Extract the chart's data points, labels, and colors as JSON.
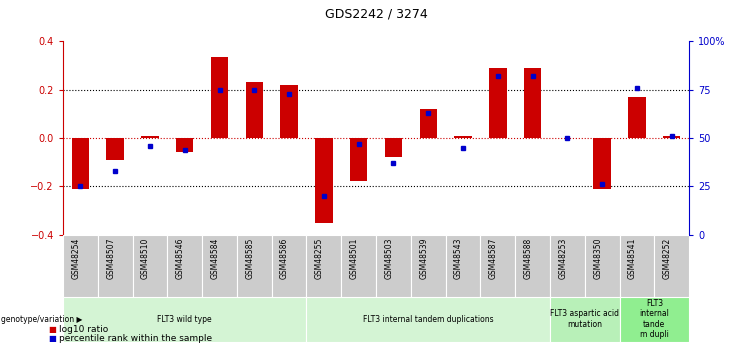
{
  "title": "GDS2242 / 3274",
  "samples": [
    "GSM48254",
    "GSM48507",
    "GSM48510",
    "GSM48546",
    "GSM48584",
    "GSM48585",
    "GSM48586",
    "GSM48255",
    "GSM48501",
    "GSM48503",
    "GSM48539",
    "GSM48543",
    "GSM48587",
    "GSM48588",
    "GSM48253",
    "GSM48350",
    "GSM48541",
    "GSM48252"
  ],
  "log10_ratio": [
    -0.21,
    -0.09,
    0.01,
    -0.06,
    0.335,
    0.23,
    0.22,
    -0.35,
    -0.18,
    -0.08,
    0.12,
    0.01,
    0.29,
    0.29,
    0.0,
    -0.21,
    0.17,
    0.01
  ],
  "percentile_rank": [
    25,
    33,
    46,
    44,
    75,
    75,
    73,
    20,
    47,
    37,
    63,
    45,
    82,
    82,
    50,
    26,
    76,
    51
  ],
  "groups": [
    {
      "label": "FLT3 wild type",
      "start": 0,
      "end": 7,
      "color": "#d4f4d4"
    },
    {
      "label": "FLT3 internal tandem duplications",
      "start": 7,
      "end": 14,
      "color": "#d4f4d4"
    },
    {
      "label": "FLT3 aspartic acid\nmutation",
      "start": 14,
      "end": 16,
      "color": "#b8f0b8"
    },
    {
      "label": "FLT3\ninternal\ntande\nm dupli",
      "start": 16,
      "end": 18,
      "color": "#90ee90"
    }
  ],
  "bar_color": "#cc0000",
  "dot_color": "#0000cc",
  "ylim_left": [
    -0.4,
    0.4
  ],
  "ylim_right": [
    0,
    100
  ],
  "yticks_left": [
    -0.4,
    -0.2,
    0.0,
    0.2,
    0.4
  ],
  "yticks_right": [
    0,
    25,
    50,
    75,
    100
  ],
  "ytick_labels_right": [
    "0",
    "25",
    "50",
    "75",
    "100%"
  ],
  "grid_values": [
    -0.2,
    0.0,
    0.2
  ],
  "legend_items": [
    {
      "label": "log10 ratio",
      "color": "#cc0000"
    },
    {
      "label": "percentile rank within the sample",
      "color": "#0000cc"
    }
  ]
}
